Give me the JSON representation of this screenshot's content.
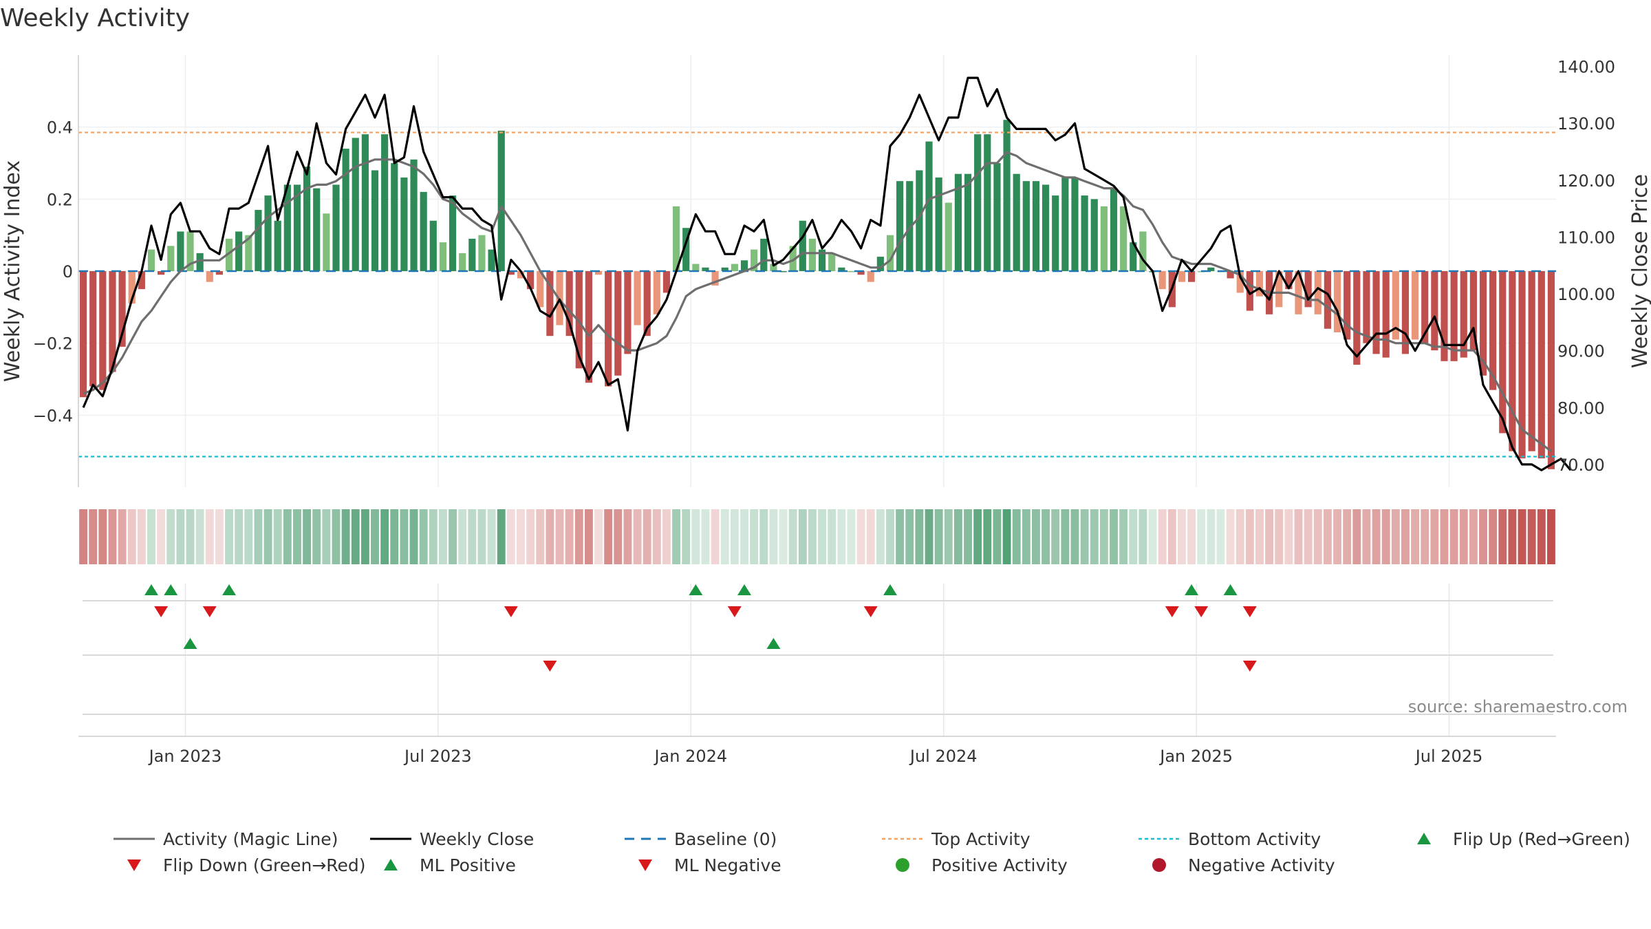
{
  "chart_data": {
    "type": "bar",
    "title": "Weekly Activity",
    "ylabel_left": "Weekly Activity Index",
    "ylabel_right": "Weekly Close Price",
    "source": "source: sharemaestro.com",
    "x_ticks": [
      "Jan 2023",
      "Jul 2023",
      "Jan 2024",
      "Jul 2024",
      "Jan 2025",
      "Jul 2025"
    ],
    "x_tick_week_index": [
      11,
      37,
      63,
      89,
      115,
      141
    ],
    "y_left_ticks": [
      "0.4",
      "0.2",
      "0",
      "−0.2",
      "−0.4"
    ],
    "y_left_tick_values": [
      0.4,
      0.2,
      0,
      -0.2,
      -0.4
    ],
    "y_left_range": [
      -0.6,
      0.6
    ],
    "y_right_ticks": [
      "140.00",
      "130.00",
      "120.00",
      "110.00",
      "100.00",
      "90.00",
      "80.00",
      "70.00"
    ],
    "y_right_tick_values": [
      140,
      130,
      120,
      110,
      100,
      90,
      80,
      70
    ],
    "y_right_range": [
      66,
      142
    ],
    "top_activity": 0.385,
    "bottom_activity": -0.515,
    "activity_values": [
      -0.35,
      -0.32,
      -0.33,
      -0.28,
      -0.21,
      -0.09,
      -0.05,
      0.06,
      -0.01,
      0.07,
      0.11,
      0.11,
      0.05,
      -0.03,
      -0.01,
      0.09,
      0.11,
      0.1,
      0.17,
      0.21,
      0.14,
      0.24,
      0.24,
      0.29,
      0.23,
      0.16,
      0.24,
      0.34,
      0.37,
      0.38,
      0.28,
      0.38,
      0.3,
      0.26,
      0.31,
      0.22,
      0.14,
      0.08,
      0.21,
      0.05,
      0.09,
      0.1,
      0.06,
      0.39,
      -0.01,
      -0.02,
      -0.05,
      -0.1,
      -0.18,
      -0.15,
      -0.18,
      -0.27,
      -0.31,
      -0.01,
      -0.32,
      -0.29,
      -0.23,
      -0.15,
      -0.18,
      -0.12,
      -0.06,
      0.18,
      0.12,
      0.02,
      0.01,
      -0.04,
      0.01,
      0.02,
      0.03,
      0.06,
      0.09,
      0.02,
      0.0,
      0.07,
      0.14,
      0.09,
      0.06,
      0.05,
      0.01,
      0.0,
      -0.01,
      -0.03,
      0.04,
      0.1,
      0.25,
      0.25,
      0.28,
      0.36,
      0.26,
      0.19,
      0.27,
      0.27,
      0.38,
      0.38,
      0.3,
      0.42,
      0.27,
      0.25,
      0.25,
      0.24,
      0.21,
      0.26,
      0.26,
      0.21,
      0.2,
      0.18,
      0.23,
      0.18,
      0.08,
      0.11,
      0.0,
      -0.05,
      -0.1,
      -0.03,
      -0.03,
      0.0,
      0.01,
      0.0,
      -0.02,
      -0.06,
      -0.11,
      -0.07,
      -0.12,
      -0.1,
      -0.05,
      -0.12,
      -0.1,
      -0.12,
      -0.16,
      -0.17,
      -0.19,
      -0.26,
      -0.2,
      -0.23,
      -0.24,
      -0.19,
      -0.23,
      -0.19,
      -0.2,
      -0.22,
      -0.25,
      -0.25,
      -0.24,
      -0.22,
      -0.29,
      -0.33,
      -0.45,
      -0.5,
      -0.52,
      -0.5,
      -0.52,
      -0.55
    ],
    "magic_line_values": [
      -0.34,
      -0.33,
      -0.31,
      -0.28,
      -0.24,
      -0.19,
      -0.14,
      -0.11,
      -0.07,
      -0.03,
      -0.0,
      0.02,
      0.03,
      0.03,
      0.03,
      0.05,
      0.07,
      0.09,
      0.12,
      0.15,
      0.17,
      0.19,
      0.21,
      0.23,
      0.24,
      0.24,
      0.25,
      0.27,
      0.29,
      0.3,
      0.31,
      0.31,
      0.31,
      0.3,
      0.29,
      0.27,
      0.24,
      0.2,
      0.19,
      0.16,
      0.14,
      0.12,
      0.11,
      0.18,
      0.14,
      0.1,
      0.05,
      0.0,
      -0.04,
      -0.08,
      -0.11,
      -0.14,
      -0.18,
      -0.15,
      -0.18,
      -0.2,
      -0.22,
      -0.22,
      -0.21,
      -0.2,
      -0.18,
      -0.13,
      -0.07,
      -0.05,
      -0.04,
      -0.03,
      -0.02,
      -0.01,
      0.0,
      0.01,
      0.03,
      0.03,
      0.02,
      0.03,
      0.05,
      0.05,
      0.05,
      0.05,
      0.04,
      0.03,
      0.02,
      0.01,
      0.01,
      0.03,
      0.08,
      0.12,
      0.15,
      0.2,
      0.21,
      0.22,
      0.23,
      0.24,
      0.27,
      0.3,
      0.3,
      0.33,
      0.32,
      0.3,
      0.29,
      0.28,
      0.27,
      0.26,
      0.26,
      0.25,
      0.24,
      0.23,
      0.23,
      0.21,
      0.18,
      0.17,
      0.13,
      0.08,
      0.04,
      0.03,
      0.02,
      0.02,
      0.02,
      0.01,
      0.0,
      -0.01,
      -0.04,
      -0.05,
      -0.06,
      -0.06,
      -0.06,
      -0.07,
      -0.08,
      -0.08,
      -0.1,
      -0.12,
      -0.15,
      -0.17,
      -0.18,
      -0.19,
      -0.19,
      -0.2,
      -0.2,
      -0.2,
      -0.2,
      -0.21,
      -0.21,
      -0.22,
      -0.22,
      -0.22,
      -0.25,
      -0.29,
      -0.34,
      -0.39,
      -0.44,
      -0.46,
      -0.48,
      -0.5
    ],
    "weekly_close_values": [
      80.0,
      84.0,
      82.0,
      87.0,
      93.0,
      99.0,
      104.0,
      112.0,
      106.0,
      114.0,
      116.0,
      111.0,
      111.0,
      108.0,
      107.0,
      115.0,
      115.0,
      116.0,
      121.0,
      126.0,
      113.0,
      119.0,
      125.0,
      121.0,
      130.0,
      123.0,
      121.0,
      129.0,
      132.0,
      135.0,
      131.0,
      135.0,
      123.0,
      124.0,
      133.0,
      125.0,
      121.0,
      117.0,
      117.0,
      115.0,
      115.0,
      113.0,
      112.0,
      99.0,
      106.0,
      104.0,
      101.0,
      97.0,
      96.0,
      99.0,
      95.0,
      89.0,
      85.0,
      88.0,
      84.0,
      85.0,
      76.0,
      90.0,
      94.0,
      96.0,
      99.0,
      104.0,
      109.0,
      114.0,
      111.0,
      111.0,
      107.0,
      107.0,
      112.0,
      111.0,
      113.0,
      105.0,
      106.0,
      108.0,
      110.0,
      113.0,
      108.0,
      110.0,
      113.0,
      111.0,
      108.0,
      113.0,
      112.0,
      126.0,
      128.0,
      131.0,
      135.0,
      131.0,
      127.0,
      131.0,
      131.0,
      138.0,
      138.0,
      133.0,
      136.0,
      131.0,
      129.0,
      129.0,
      129.0,
      129.0,
      127.0,
      128.0,
      130.0,
      122.0,
      121.0,
      120.0,
      119.0,
      117.0,
      109.0,
      106.0,
      104.0,
      97.0,
      101.0,
      106.0,
      104.0,
      106.0,
      108.0,
      111.0,
      112.0,
      103.0,
      100.0,
      101.0,
      99.0,
      104.0,
      101.0,
      104.0,
      99.0,
      101.0,
      100.0,
      97.0,
      91.0,
      89.0,
      91.0,
      93.0,
      93.0,
      94.0,
      93.0,
      90.0,
      93.0,
      96.0,
      91.0,
      91.0,
      91.0,
      94.0,
      84.0,
      81.0,
      78.0,
      73.0,
      70.0,
      70.0,
      69.0,
      70.0,
      71.0,
      69.0
    ],
    "heat_strip_values": [
      -0.35,
      -0.32,
      -0.33,
      -0.28,
      -0.21,
      -0.09,
      -0.05,
      0.06,
      -0.01,
      0.07,
      0.11,
      0.11,
      0.05,
      -0.03,
      -0.01,
      0.09,
      0.11,
      0.1,
      0.17,
      0.21,
      0.14,
      0.24,
      0.24,
      0.29,
      0.23,
      0.16,
      0.24,
      0.34,
      0.37,
      0.38,
      0.28,
      0.38,
      0.3,
      0.26,
      0.31,
      0.22,
      0.14,
      0.08,
      0.21,
      0.05,
      0.09,
      0.1,
      0.06,
      0.39,
      -0.01,
      -0.02,
      -0.05,
      -0.1,
      -0.18,
      -0.15,
      -0.18,
      -0.27,
      -0.31,
      -0.01,
      -0.32,
      -0.29,
      -0.23,
      -0.15,
      -0.18,
      -0.12,
      -0.06,
      0.18,
      0.12,
      0.02,
      0.01,
      -0.04,
      0.01,
      0.02,
      0.03,
      0.06,
      0.09,
      0.02,
      0.0,
      0.07,
      0.14,
      0.09,
      0.06,
      0.05,
      0.01,
      0.0,
      -0.01,
      -0.03,
      0.04,
      0.1,
      0.25,
      0.25,
      0.28,
      0.36,
      0.26,
      0.19,
      0.27,
      0.27,
      0.38,
      0.38,
      0.3,
      0.42,
      0.27,
      0.25,
      0.25,
      0.24,
      0.21,
      0.26,
      0.26,
      0.21,
      0.2,
      0.18,
      0.23,
      0.18,
      0.08,
      0.11,
      0.0,
      -0.05,
      -0.1,
      -0.03,
      -0.03,
      0.0,
      0.01,
      0.0,
      -0.02,
      -0.06,
      -0.11,
      -0.07,
      -0.12,
      -0.1,
      -0.05,
      -0.12,
      -0.1,
      -0.12,
      -0.16,
      -0.17,
      -0.19,
      -0.26,
      -0.2,
      -0.23,
      -0.24,
      -0.19,
      -0.23,
      -0.19,
      -0.2,
      -0.22,
      -0.25,
      -0.25,
      -0.24,
      -0.22,
      -0.29,
      -0.33,
      -0.45,
      -0.5,
      -0.52,
      -0.5,
      -0.52,
      -0.55
    ],
    "flip_up_weeks": [
      7,
      9,
      15,
      63,
      68,
      83,
      114,
      118
    ],
    "flip_down_weeks": [
      8,
      13,
      44,
      67,
      81,
      112,
      115,
      120
    ],
    "ml_positive_weeks": [
      11,
      71
    ],
    "ml_negative_weeks": [
      48,
      120
    ],
    "positive_activity_weeks": [],
    "negative_activity_weeks": [],
    "colors": {
      "pos_strong": "#2e8b57",
      "pos_light": "#7fbf7b",
      "neg_strong": "#c0504d",
      "neg_light": "#e9967a",
      "magic_line": "#6e6e6e",
      "close_line": "#000000",
      "baseline": "#1f77b4",
      "top": "#f4a261",
      "bottom": "#17becf",
      "flip_up": "#1a9641",
      "flip_down": "#d7191c",
      "pos_dot": "#2ca02c",
      "neg_dot": "#b2182b"
    },
    "legend": [
      {
        "label": "Activity (Magic Line)",
        "marker": "solid-line",
        "color": "#6e6e6e"
      },
      {
        "label": "Weekly Close",
        "marker": "solid-line",
        "color": "#000000"
      },
      {
        "label": "Baseline (0)",
        "marker": "dashed-line",
        "color": "#1f77b4"
      },
      {
        "label": "Top Activity",
        "marker": "dotted-line",
        "color": "#f4a261"
      },
      {
        "label": "Bottom Activity",
        "marker": "dotted-line",
        "color": "#17becf"
      },
      {
        "label": "Flip Up (Red→Green)",
        "marker": "triangle-up",
        "color": "#1a9641"
      },
      {
        "label": "Flip Down (Green→Red)",
        "marker": "triangle-down",
        "color": "#d7191c"
      },
      {
        "label": "ML Positive",
        "marker": "triangle-up",
        "color": "#1a9641"
      },
      {
        "label": "ML Negative",
        "marker": "triangle-down",
        "color": "#d7191c"
      },
      {
        "label": "Positive Activity",
        "marker": "circle",
        "color": "#2ca02c"
      },
      {
        "label": "Negative Activity",
        "marker": "circle",
        "color": "#b2182b"
      }
    ]
  }
}
